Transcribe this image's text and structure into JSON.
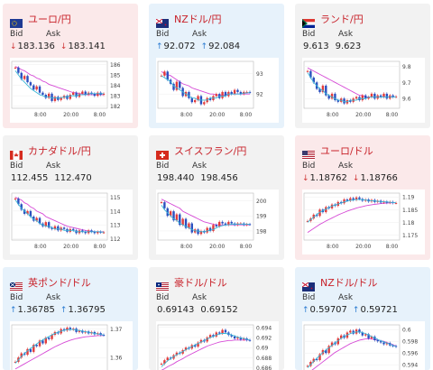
{
  "cards": [
    {
      "title": "ユーロ/円",
      "bid_label": "Bid",
      "ask_label": "Ask",
      "dir": "down",
      "bid": "183.136",
      "ask": "183.141",
      "arrow": "↓",
      "flag": "eu",
      "yticks": [
        "186",
        "185",
        "184",
        "183",
        "182"
      ],
      "xticks": [
        "8:00",
        "20:00",
        "8:00"
      ],
      "candles": [
        185.7,
        185.2,
        184.6,
        184.9,
        184.3,
        184.0,
        183.6,
        183.9,
        183.3,
        183.1,
        182.8,
        183.2,
        182.5,
        182.9,
        182.6,
        182.8,
        183.0,
        182.7,
        183.1,
        183.3,
        182.9,
        183.2,
        183.4,
        183.1,
        183.3,
        183.2,
        183.0,
        183.3,
        183.1,
        183.2
      ],
      "ma_fast": [
        185.4,
        185.0,
        184.6,
        184.3,
        184.0,
        183.7,
        183.5,
        183.3,
        183.1,
        183.0,
        182.9,
        182.9,
        182.8,
        182.8,
        182.8,
        182.8,
        182.9,
        182.9,
        183.0,
        183.0,
        183.0,
        183.1,
        183.1,
        183.1,
        183.2,
        183.2,
        183.2,
        183.2,
        183.2,
        183.2
      ],
      "ma_slow": [
        185.8,
        185.7,
        185.5,
        185.4,
        185.2,
        185.0,
        184.9,
        184.7,
        184.6,
        184.4,
        184.3,
        184.1,
        184.0,
        183.9,
        183.8,
        183.7,
        183.6,
        183.5,
        183.4,
        183.3,
        183.3,
        183.2,
        183.2,
        183.1,
        183.1,
        183.1,
        183.1,
        183.1,
        183.1,
        183.1
      ],
      "ylim": [
        181.8,
        186.3
      ]
    },
    {
      "title": "NZドル/円",
      "bid_label": "Bid",
      "ask_label": "Ask",
      "dir": "up",
      "bid": "92.072",
      "ask": "92.084",
      "arrow": "↑",
      "flag": "nz",
      "yticks": [
        "93",
        "92"
      ],
      "xticks": [
        "8:00",
        "20:00",
        "8:00"
      ],
      "candles": [
        92.9,
        93.1,
        92.7,
        92.5,
        92.2,
        92.6,
        92.3,
        91.9,
        92.1,
        91.8,
        91.6,
        91.7,
        91.9,
        91.5,
        91.6,
        91.8,
        91.7,
        91.9,
        92.0,
        91.8,
        92.1,
        91.9,
        92.1,
        92.0,
        92.2,
        92.1,
        92.0,
        92.1,
        92.1,
        92.07
      ],
      "ma_fast": [
        92.9,
        92.8,
        92.7,
        92.6,
        92.4,
        92.3,
        92.2,
        92.1,
        92.0,
        91.9,
        91.8,
        91.8,
        91.7,
        91.7,
        91.7,
        91.7,
        91.8,
        91.8,
        91.8,
        91.9,
        91.9,
        91.9,
        92.0,
        92.0,
        92.0,
        92.0,
        92.0,
        92.05,
        92.05,
        92.07
      ],
      "ma_slow": [
        93.1,
        93.0,
        92.95,
        92.9,
        92.8,
        92.7,
        92.6,
        92.5,
        92.45,
        92.4,
        92.3,
        92.25,
        92.2,
        92.15,
        92.1,
        92.05,
        92.0,
        92.0,
        91.95,
        91.95,
        91.95,
        91.95,
        92.0,
        92.0,
        92.0,
        92.0,
        92.0,
        92.0,
        92.0,
        92.0
      ],
      "ylim": [
        91.3,
        93.6
      ]
    },
    {
      "title": "ランド/円",
      "bid_label": "Bid",
      "ask_label": "Ask",
      "dir": "flat",
      "bid": "9.613",
      "ask": "9.623",
      "arrow": "",
      "flag": "za",
      "yticks": [
        "9.8",
        "9.7",
        "9.6"
      ],
      "xticks": [
        "8:00",
        "20:00",
        "8:00"
      ],
      "candles": [
        9.77,
        9.73,
        9.7,
        9.66,
        9.64,
        9.68,
        9.62,
        9.6,
        9.63,
        9.59,
        9.58,
        9.6,
        9.57,
        9.59,
        9.58,
        9.6,
        9.61,
        9.59,
        9.62,
        9.6,
        9.61,
        9.63,
        9.6,
        9.62,
        9.61,
        9.63,
        9.6,
        9.62,
        9.61,
        9.613
      ],
      "ma_fast": [
        9.76,
        9.73,
        9.7,
        9.68,
        9.66,
        9.65,
        9.63,
        9.62,
        9.61,
        9.6,
        9.59,
        9.59,
        9.58,
        9.58,
        9.59,
        9.59,
        9.59,
        9.6,
        9.6,
        9.6,
        9.61,
        9.61,
        9.61,
        9.61,
        9.61,
        9.61,
        9.61,
        9.61,
        9.61,
        9.61
      ],
      "ma_slow": [
        9.79,
        9.78,
        9.77,
        9.76,
        9.75,
        9.74,
        9.73,
        9.72,
        9.71,
        9.7,
        9.69,
        9.68,
        9.67,
        9.66,
        9.65,
        9.64,
        9.63,
        9.62,
        9.62,
        9.61,
        9.61,
        9.61,
        9.61,
        9.61,
        9.61,
        9.61,
        9.61,
        9.61,
        9.61,
        9.61
      ],
      "ylim": [
        9.54,
        9.83
      ]
    },
    {
      "title": "カナダドル/円",
      "bid_label": "Bid",
      "ask_label": "Ask",
      "dir": "flat",
      "bid": "112.455",
      "ask": "112.470",
      "arrow": "",
      "flag": "ca",
      "yticks": [
        "115",
        "114",
        "113",
        "112"
      ],
      "xticks": [
        "8:00",
        "20:00",
        "8:00"
      ],
      "candles": [
        114.9,
        114.5,
        114.1,
        113.8,
        114.0,
        113.6,
        113.3,
        113.5,
        113.1,
        112.9,
        113.2,
        112.8,
        112.7,
        112.9,
        112.6,
        112.8,
        112.7,
        112.5,
        112.7,
        112.6,
        112.4,
        112.6,
        112.5,
        112.4,
        112.6,
        112.5,
        112.4,
        112.5,
        112.45,
        112.46
      ],
      "ma_fast": [
        114.8,
        114.5,
        114.2,
        114.0,
        113.8,
        113.6,
        113.4,
        113.3,
        113.1,
        113.0,
        112.9,
        112.9,
        112.8,
        112.7,
        112.7,
        112.7,
        112.6,
        112.6,
        112.6,
        112.6,
        112.5,
        112.5,
        112.5,
        112.5,
        112.5,
        112.5,
        112.5,
        112.5,
        112.5,
        112.46
      ],
      "ma_slow": [
        115.0,
        114.9,
        114.8,
        114.6,
        114.5,
        114.3,
        114.2,
        114.0,
        113.9,
        113.8,
        113.6,
        113.5,
        113.4,
        113.3,
        113.2,
        113.1,
        113.0,
        112.9,
        112.85,
        112.8,
        112.75,
        112.7,
        112.65,
        112.6,
        112.55,
        112.55,
        112.5,
        112.5,
        112.5,
        112.5
      ],
      "ylim": [
        111.9,
        115.3
      ]
    },
    {
      "title": "スイスフラン/円",
      "bid_label": "Bid",
      "ask_label": "Ask",
      "dir": "flat",
      "bid": "198.440",
      "ask": "198.456",
      "arrow": "",
      "flag": "ch",
      "yticks": [
        "200",
        "199",
        "198"
      ],
      "xticks": [
        "8:00",
        "20:00",
        "8:00"
      ],
      "candles": [
        199.9,
        199.5,
        199.0,
        199.3,
        198.7,
        199.1,
        198.4,
        198.8,
        198.2,
        198.5,
        197.9,
        198.1,
        197.8,
        198.0,
        197.9,
        198.2,
        198.0,
        198.4,
        198.3,
        198.6,
        198.5,
        198.4,
        198.6,
        198.5,
        198.4,
        198.5,
        198.5,
        198.4,
        198.45,
        198.44
      ],
      "ma_fast": [
        199.7,
        199.4,
        199.2,
        199.0,
        198.8,
        198.7,
        198.5,
        198.4,
        198.3,
        198.2,
        198.1,
        198.0,
        198.0,
        197.95,
        197.95,
        198.0,
        198.05,
        198.1,
        198.2,
        198.3,
        198.35,
        198.4,
        198.4,
        198.45,
        198.45,
        198.45,
        198.45,
        198.45,
        198.45,
        198.44
      ],
      "ma_slow": [
        200.1,
        200.0,
        199.9,
        199.8,
        199.7,
        199.6,
        199.5,
        199.3,
        199.2,
        199.1,
        199.0,
        198.9,
        198.8,
        198.7,
        198.6,
        198.55,
        198.5,
        198.45,
        198.4,
        198.4,
        198.4,
        198.4,
        198.4,
        198.4,
        198.4,
        198.4,
        198.4,
        198.4,
        198.4,
        198.4
      ],
      "ylim": [
        197.4,
        200.5
      ]
    },
    {
      "title": "ユーロ/ドル",
      "bid_label": "Bid",
      "ask_label": "Ask",
      "dir": "down",
      "bid": "1.18762",
      "ask": "1.18766",
      "arrow": "↓",
      "flag": "us",
      "yticks": [
        "1.19",
        "1.185",
        "1.18",
        "1.175"
      ],
      "xticks": [
        "8:00",
        "20:00",
        "8:00"
      ],
      "candles": [
        1.1805,
        1.1815,
        1.183,
        1.1825,
        1.185,
        1.184,
        1.186,
        1.1855,
        1.187,
        1.1865,
        1.188,
        1.1875,
        1.189,
        1.1885,
        1.1895,
        1.1888,
        1.1898,
        1.1892,
        1.1885,
        1.189,
        1.1882,
        1.1888,
        1.188,
        1.1885,
        1.1878,
        1.1882,
        1.1877,
        1.188,
        1.1876,
        1.18762
      ],
      "ma_fast": [
        1.18,
        1.181,
        1.182,
        1.183,
        1.184,
        1.1845,
        1.1852,
        1.1858,
        1.1864,
        1.1868,
        1.1872,
        1.1876,
        1.188,
        1.1884,
        1.1886,
        1.1888,
        1.189,
        1.189,
        1.1889,
        1.1888,
        1.1886,
        1.1885,
        1.1884,
        1.1883,
        1.1882,
        1.1881,
        1.188,
        1.1879,
        1.1878,
        1.1877
      ],
      "ma_slow": [
        1.176,
        1.1768,
        1.1776,
        1.1784,
        1.1792,
        1.1798,
        1.1805,
        1.1811,
        1.1817,
        1.1823,
        1.1829,
        1.1834,
        1.1839,
        1.1844,
        1.1848,
        1.1852,
        1.1856,
        1.1859,
        1.1862,
        1.1865,
        1.1867,
        1.1869,
        1.1871,
        1.1872,
        1.1874,
        1.1875,
        1.1876,
        1.1876,
        1.1877,
        1.1877
      ],
      "ylim": [
        1.173,
        1.1915
      ]
    },
    {
      "title": "英ポンド/ドル",
      "bid_label": "Bid",
      "ask_label": "Ask",
      "dir": "up",
      "bid": "1.36785",
      "ask": "1.36795",
      "arrow": "↑",
      "flag": "gb",
      "yticks": [
        "1.37",
        "1.36"
      ],
      "xticks": [],
      "candles": [
        1.3585,
        1.36,
        1.3615,
        1.361,
        1.363,
        1.362,
        1.3645,
        1.364,
        1.366,
        1.365,
        1.367,
        1.3665,
        1.368,
        1.369,
        1.3685,
        1.37,
        1.3695,
        1.3705,
        1.3698,
        1.3702,
        1.369,
        1.3695,
        1.3688,
        1.3692,
        1.3685,
        1.369,
        1.3682,
        1.3686,
        1.368,
        1.36785
      ],
      "ma_fast": [
        1.358,
        1.3592,
        1.3604,
        1.3614,
        1.3624,
        1.3632,
        1.364,
        1.3648,
        1.3656,
        1.3662,
        1.3668,
        1.3674,
        1.368,
        1.3685,
        1.3689,
        1.3693,
        1.3696,
        1.3698,
        1.3699,
        1.3699,
        1.3697,
        1.3695,
        1.3693,
        1.3691,
        1.3689,
        1.3687,
        1.3685,
        1.3683,
        1.3681,
        1.3679
      ],
      "ma_slow": [
        1.356,
        1.3566,
        1.3572,
        1.3578,
        1.3584,
        1.359,
        1.3596,
        1.3602,
        1.3608,
        1.3614,
        1.362,
        1.3626,
        1.3632,
        1.3638,
        1.3643,
        1.3648,
        1.3653,
        1.3657,
        1.3661,
        1.3664,
        1.3667,
        1.3669,
        1.3671,
        1.3673,
        1.3674,
        1.3675,
        1.3676,
        1.3677,
        1.3677,
        1.3678
      ],
      "ylim": [
        1.355,
        1.3715
      ]
    },
    {
      "title": "豪ドル/ドル",
      "bid_label": "Bid",
      "ask_label": "Ask",
      "dir": "flat",
      "bid": "0.69143",
      "ask": "0.69152",
      "arrow": "",
      "flag": "au",
      "yticks": [
        "0.694",
        "0.692",
        "0.69",
        "0.688",
        "0.686"
      ],
      "xticks": [],
      "candles": [
        0.6868,
        0.6875,
        0.688,
        0.6878,
        0.6885,
        0.689,
        0.6888,
        0.6895,
        0.69,
        0.6898,
        0.6905,
        0.6902,
        0.691,
        0.6915,
        0.6912,
        0.692,
        0.6925,
        0.6922,
        0.693,
        0.6928,
        0.6935,
        0.693,
        0.6925,
        0.6922,
        0.6918,
        0.692,
        0.6916,
        0.6918,
        0.6915,
        0.69143
      ],
      "ma_fast": [
        0.6862,
        0.6868,
        0.6874,
        0.6878,
        0.6882,
        0.6886,
        0.6889,
        0.6892,
        0.6896,
        0.6899,
        0.6902,
        0.6905,
        0.6908,
        0.6911,
        0.6914,
        0.6917,
        0.692,
        0.6922,
        0.6925,
        0.6927,
        0.6928,
        0.6928,
        0.6927,
        0.6925,
        0.6923,
        0.6921,
        0.6919,
        0.6918,
        0.6916,
        0.6915
      ],
      "ma_slow": [
        0.6855,
        0.6858,
        0.6862,
        0.6865,
        0.6868,
        0.6872,
        0.6875,
        0.6878,
        0.6882,
        0.6885,
        0.6888,
        0.6891,
        0.6894,
        0.6897,
        0.69,
        0.6903,
        0.6905,
        0.6907,
        0.6909,
        0.6911,
        0.6912,
        0.6913,
        0.6914,
        0.6914,
        0.6915,
        0.6915,
        0.6915,
        0.6915,
        0.6915,
        0.6915
      ],
      "ylim": [
        0.6852,
        0.6945
      ]
    },
    {
      "title": "NZドル/ドル",
      "bid_label": "Bid",
      "ask_label": "Ask",
      "dir": "up",
      "bid": "0.59707",
      "ask": "0.59721",
      "arrow": "↑",
      "flag": "nzus",
      "yticks": [
        "0.6",
        "0.598",
        "0.596",
        "0.594"
      ],
      "xticks": [],
      "candles": [
        0.5938,
        0.5945,
        0.595,
        0.5948,
        0.5958,
        0.5965,
        0.596,
        0.5972,
        0.5978,
        0.5975,
        0.5985,
        0.599,
        0.5986,
        0.5995,
        0.5998,
        0.5993,
        0.6,
        0.5995,
        0.599,
        0.5992,
        0.5985,
        0.5988,
        0.5982,
        0.598,
        0.5978,
        0.5975,
        0.5977,
        0.5973,
        0.5972,
        0.59707
      ],
      "ma_fast": [
        0.5935,
        0.594,
        0.5946,
        0.5951,
        0.5956,
        0.5961,
        0.5965,
        0.5969,
        0.5973,
        0.5977,
        0.5981,
        0.5985,
        0.5988,
        0.5991,
        0.5993,
        0.5995,
        0.5996,
        0.5996,
        0.5995,
        0.5993,
        0.5991,
        0.5988,
        0.5986,
        0.5983,
        0.5981,
        0.5979,
        0.5977,
        0.5975,
        0.5973,
        0.5971
      ],
      "ma_slow": [
        0.5925,
        0.5929,
        0.5933,
        0.5937,
        0.5941,
        0.5945,
        0.5949,
        0.5953,
        0.5957,
        0.5961,
        0.5964,
        0.5967,
        0.597,
        0.5973,
        0.5976,
        0.5978,
        0.598,
        0.5982,
        0.5983,
        0.5984,
        0.5984,
        0.5984,
        0.5983,
        0.5982,
        0.5981,
        0.598,
        0.5978,
        0.5976,
        0.5974,
        0.5972
      ],
      "ylim": [
        0.5928,
        0.6008
      ]
    }
  ]
}
